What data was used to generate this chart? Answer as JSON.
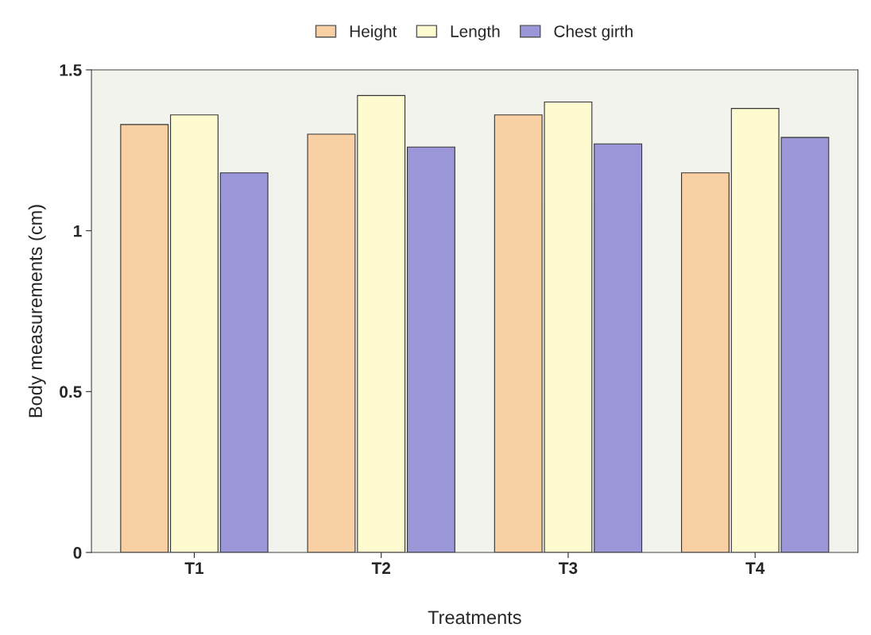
{
  "chart_data": {
    "type": "bar",
    "xlabel": "Treatments",
    "ylabel": "Body measurements (cm)",
    "categories": [
      "T1",
      "T2",
      "T3",
      "T4"
    ],
    "series": [
      {
        "name": "Height",
        "color": "#f9cfa4",
        "values": [
          1.33,
          1.3,
          1.36,
          1.18
        ]
      },
      {
        "name": "Length",
        "color": "#fffbd0",
        "values": [
          1.36,
          1.42,
          1.4,
          1.38
        ]
      },
      {
        "name": "Chest girth",
        "color": "#9a96d8",
        "values": [
          1.18,
          1.26,
          1.27,
          1.29
        ]
      }
    ],
    "ylim": [
      0,
      1.5
    ],
    "yticks": [
      0,
      0.5,
      1,
      1.5
    ],
    "grid": false,
    "legend": "top"
  }
}
